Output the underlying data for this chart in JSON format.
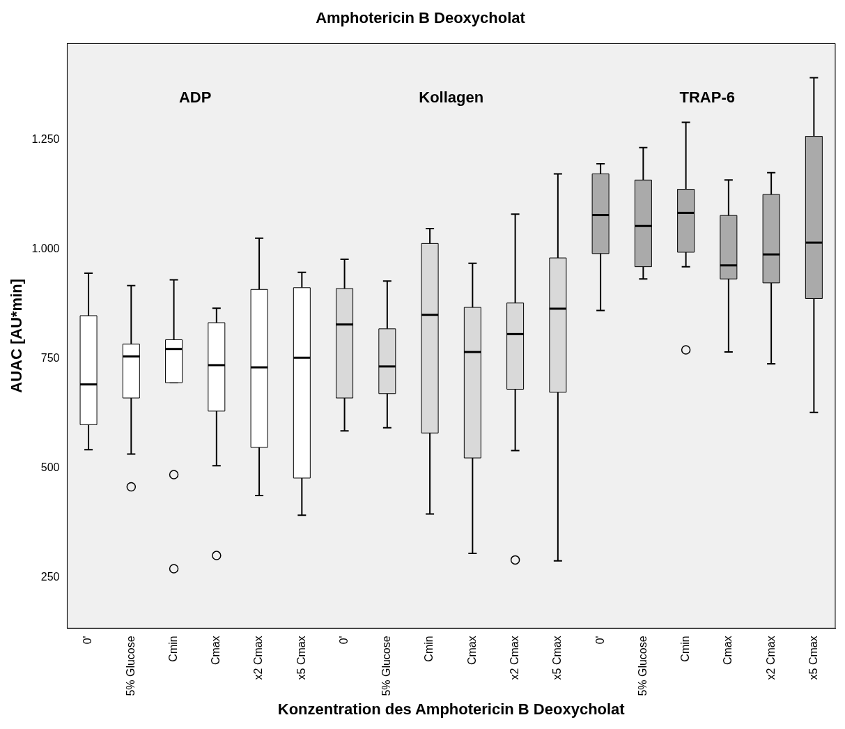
{
  "chart_data": {
    "type": "box",
    "title": "Amphotericin B Deoxycholat",
    "xlabel": "Konzentration des Amphotericin B Deoxycholat",
    "ylabel": "AUAC [AU*min]",
    "categories": [
      "0'",
      "5% Glucose",
      "Cmin",
      "Cmax",
      "x2 Cmax",
      "x5 Cmax",
      "0'",
      "5% Glucose",
      "Cmin",
      "Cmax",
      "x2 Cmax",
      "x5 Cmax",
      "0'",
      "5% Glucose",
      "Cmin",
      "Cmax",
      "x2 Cmax",
      "x5 Cmax"
    ],
    "boxes": [
      {
        "low": 542,
        "q1": 599,
        "median": 691,
        "q3": 848,
        "high": 945
      },
      {
        "low": 532,
        "q1": 660,
        "median": 755,
        "q3": 783,
        "high": 917,
        "outliers": [
          457
        ]
      },
      {
        "low": 695,
        "q1": 695,
        "median": 772,
        "q3": 793,
        "high": 930,
        "outliers": [
          485,
          270
        ]
      },
      {
        "low": 505,
        "q1": 630,
        "median": 735,
        "q3": 832,
        "high": 865,
        "outliers": [
          300
        ]
      },
      {
        "low": 437,
        "q1": 547,
        "median": 730,
        "q3": 908,
        "high": 1025
      },
      {
        "low": 392,
        "q1": 477,
        "median": 752,
        "q3": 912,
        "high": 947
      },
      {
        "low": 585,
        "q1": 660,
        "median": 828,
        "q3": 910,
        "high": 977
      },
      {
        "low": 592,
        "q1": 670,
        "median": 732,
        "q3": 818,
        "high": 927
      },
      {
        "low": 395,
        "q1": 580,
        "median": 850,
        "q3": 1013,
        "high": 1047
      },
      {
        "low": 305,
        "q1": 523,
        "median": 765,
        "q3": 867,
        "high": 968
      },
      {
        "low": 540,
        "q1": 680,
        "median": 806,
        "q3": 877,
        "high": 1080,
        "outliers": [
          290
        ]
      },
      {
        "low": 288,
        "q1": 673,
        "median": 864,
        "q3": 980,
        "high": 1172
      },
      {
        "low": 860,
        "q1": 990,
        "median": 1078,
        "q3": 1172,
        "high": 1195
      },
      {
        "low": 932,
        "q1": 960,
        "median": 1053,
        "q3": 1158,
        "high": 1232
      },
      {
        "low": 960,
        "q1": 993,
        "median": 1083,
        "q3": 1137,
        "high": 1290,
        "outliers": [
          770
        ]
      },
      {
        "low": 765,
        "q1": 932,
        "median": 963,
        "q3": 1077,
        "high": 1158
      },
      {
        "low": 738,
        "q1": 923,
        "median": 988,
        "q3": 1125,
        "high": 1175
      },
      {
        "low": 627,
        "q1": 887,
        "median": 1015,
        "q3": 1258,
        "high": 1392
      }
    ],
    "colors": [
      "#ffffff",
      "#ffffff",
      "#ffffff",
      "#ffffff",
      "#ffffff",
      "#ffffff",
      "#d9d9d9",
      "#d9d9d9",
      "#d9d9d9",
      "#d9d9d9",
      "#d9d9d9",
      "#d9d9d9",
      "#aaaaaa",
      "#aaaaaa",
      "#aaaaaa",
      "#aaaaaa",
      "#aaaaaa",
      "#aaaaaa"
    ],
    "ylim": [
      134,
      1470
    ],
    "yticks": [
      {
        "value": 250,
        "label": "250"
      },
      {
        "value": 500,
        "label": "500"
      },
      {
        "value": 750,
        "label": "750"
      },
      {
        "value": 1000,
        "label": "1.000"
      },
      {
        "value": 1250,
        "label": "1.250"
      }
    ],
    "annotations": [
      "ADP",
      "Kollagen",
      "TRAP-6"
    ],
    "grid": false,
    "legend": false
  }
}
